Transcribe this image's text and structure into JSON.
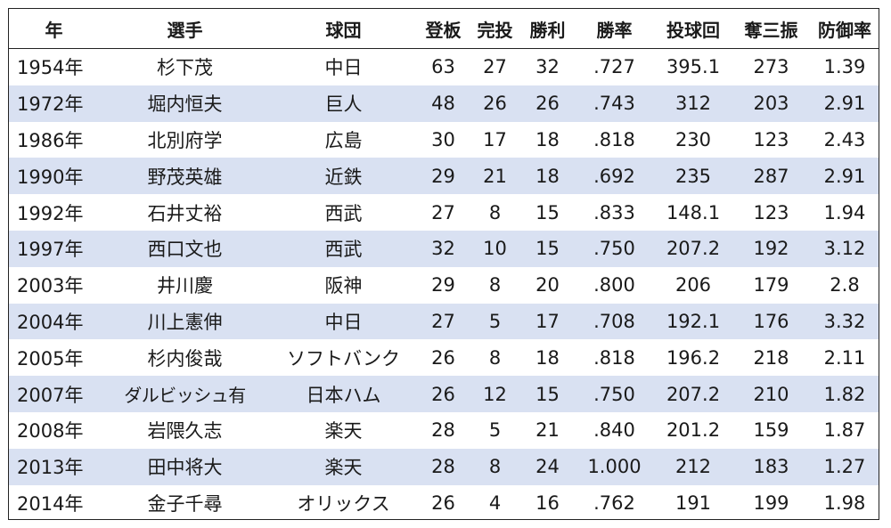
{
  "table": {
    "headers": [
      "年",
      "選手",
      "球団",
      "登板",
      "完投",
      "勝利",
      "勝率",
      "投球回",
      "奪三振",
      "防御率"
    ],
    "rows": [
      [
        "1954年",
        "杉下茂",
        "中日",
        "63",
        "27",
        "32",
        ".727",
        "395.1",
        "273",
        "1.39"
      ],
      [
        "1972年",
        "堀内恒夫",
        "巨人",
        "48",
        "26",
        "26",
        ".743",
        "312",
        "203",
        "2.91"
      ],
      [
        "1986年",
        "北別府学",
        "広島",
        "30",
        "17",
        "18",
        ".818",
        "230",
        "123",
        "2.43"
      ],
      [
        "1990年",
        "野茂英雄",
        "近鉄",
        "29",
        "21",
        "18",
        ".692",
        "235",
        "287",
        "2.91"
      ],
      [
        "1992年",
        "石井丈裕",
        "西武",
        "27",
        "8",
        "15",
        ".833",
        "148.1",
        "123",
        "1.94"
      ],
      [
        "1997年",
        "西口文也",
        "西武",
        "32",
        "10",
        "15",
        ".750",
        "207.2",
        "192",
        "3.12"
      ],
      [
        "2003年",
        "井川慶",
        "阪神",
        "29",
        "8",
        "20",
        ".800",
        "206",
        "179",
        "2.8"
      ],
      [
        "2004年",
        "川上憲伸",
        "中日",
        "27",
        "5",
        "17",
        ".708",
        "192.1",
        "176",
        "3.32"
      ],
      [
        "2005年",
        "杉内俊哉",
        "ソフトバンク",
        "26",
        "8",
        "18",
        ".818",
        "196.2",
        "218",
        "2.11"
      ],
      [
        "2007年",
        "ダルビッシュ有",
        "日本ハム",
        "26",
        "12",
        "15",
        ".750",
        "207.2",
        "210",
        "1.82"
      ],
      [
        "2008年",
        "岩隈久志",
        "楽天",
        "28",
        "5",
        "21",
        ".840",
        "201.2",
        "159",
        "1.87"
      ],
      [
        "2013年",
        "田中将大",
        "楽天",
        "28",
        "8",
        "24",
        "1.000",
        "212",
        "183",
        "1.27"
      ],
      [
        "2014年",
        "金子千尋",
        "オリックス",
        "26",
        "4",
        "16",
        ".762",
        "191",
        "199",
        "1.98"
      ]
    ]
  },
  "colors": {
    "stripe": "#d9e1f2",
    "border": "#222222",
    "background": "#ffffff"
  }
}
